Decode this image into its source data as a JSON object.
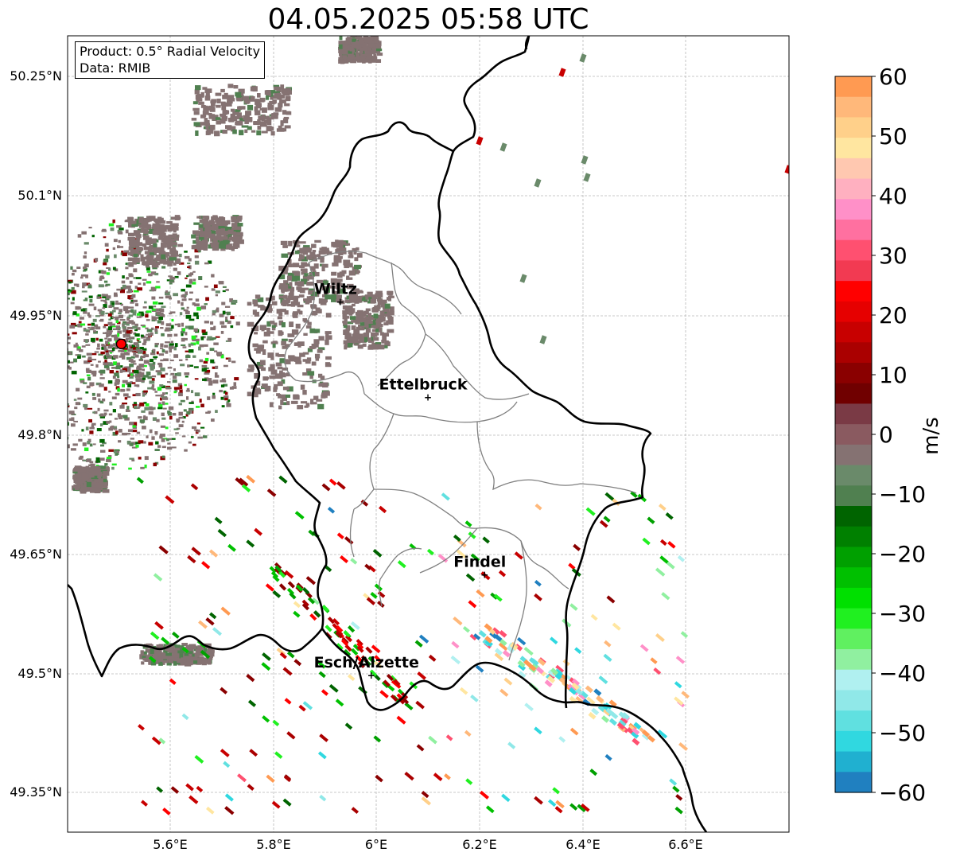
{
  "title": "04.05.2025 05:58 UTC",
  "info": {
    "product": "Product: 0.5° Radial Velocity",
    "data": "Data: RMIB"
  },
  "lat_ticks": [
    "50.25°N",
    "50.1°N",
    "49.95°N",
    "49.8°N",
    "49.65°N",
    "49.5°N",
    "49.35°N"
  ],
  "lon_ticks": [
    "5.6°E",
    "5.8°E",
    "6°E",
    "6.2°E",
    "6.4°E",
    "6.6°E"
  ],
  "cities": [
    {
      "name": "Wiltz",
      "lon": 5.93,
      "lat": 49.967
    },
    {
      "name": "Ettelbruck",
      "lon": 6.1,
      "lat": 49.847
    },
    {
      "name": "Findel",
      "lon": 6.21,
      "lat": 49.624
    },
    {
      "name": "Esch/Alzette",
      "lon": 5.99,
      "lat": 49.498
    }
  ],
  "radar_site": {
    "lon": 5.505,
    "lat": 49.914
  },
  "colorbar": {
    "label": "m/s",
    "ticks": [
      "60",
      "50",
      "40",
      "30",
      "20",
      "10",
      "0",
      "−10",
      "−20",
      "−30",
      "−40",
      "−50",
      "−60"
    ],
    "range": [
      -60,
      60
    ],
    "colors": [
      "#ff9a52",
      "#ffb87a",
      "#ffd08a",
      "#ffe6a0",
      "#ffc8b0",
      "#ffb0c0",
      "#ff90c8",
      "#ff70a0",
      "#ff5070",
      "#f23a52",
      "#ff0000",
      "#e60000",
      "#c80000",
      "#aa0000",
      "#8a0000",
      "#700000",
      "#7a3a45",
      "#8a5a60",
      "#857272",
      "#6a8a6a",
      "#508050",
      "#006400",
      "#008000",
      "#00a000",
      "#00c000",
      "#00e000",
      "#20f020",
      "#60f060",
      "#90f0a0",
      "#b0f0f0",
      "#90e8e8",
      "#60e0e0",
      "#30d8e0",
      "#20b0d0",
      "#2080c0"
    ]
  },
  "colors": {
    "land": "#ffffff",
    "border": "#000000",
    "district": "#808080",
    "grid": "#b0b0b0",
    "clutter": "#857272",
    "radar_marker": "#ff0000"
  }
}
